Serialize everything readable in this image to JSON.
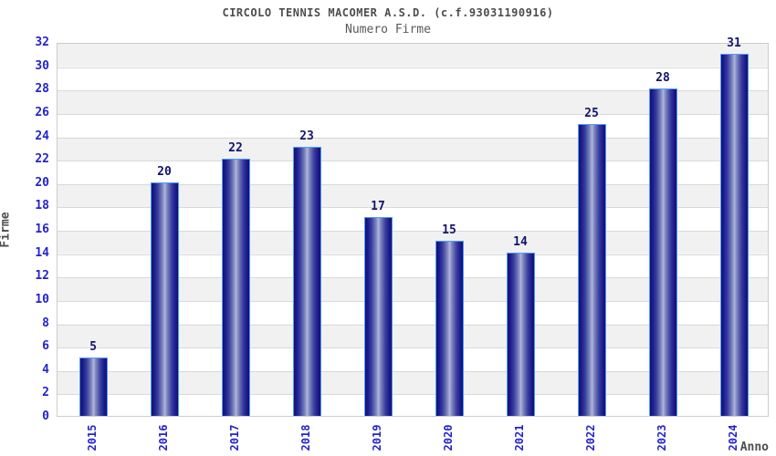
{
  "chart_data": {
    "type": "bar",
    "title": "CIRCOLO TENNIS MACOMER A.S.D. (c.f.93031190916)",
    "subtitle": "Numero Firme",
    "xlabel": "Anno",
    "ylabel": "Firme",
    "categories": [
      "2015",
      "2016",
      "2017",
      "2018",
      "2019",
      "2020",
      "2021",
      "2022",
      "2023",
      "2024"
    ],
    "values": [
      5,
      20,
      22,
      23,
      17,
      15,
      14,
      25,
      28,
      31
    ],
    "ylim": [
      0,
      32
    ],
    "ytick_step": 2,
    "grid": "horizontal",
    "legend": "none",
    "colors": {
      "bar_dark": "#12126f",
      "bar_light_center": "#b0b7db",
      "bar_border": "#4f9aff",
      "value_label": "#14146e",
      "tick_label": "#2424cc",
      "axis_text": "#4d4d4d",
      "band_gray": "#f1f1f1",
      "band_white": "#ffffff",
      "gridline": "#d9d9d9",
      "plot_border": "#cccccc"
    }
  }
}
